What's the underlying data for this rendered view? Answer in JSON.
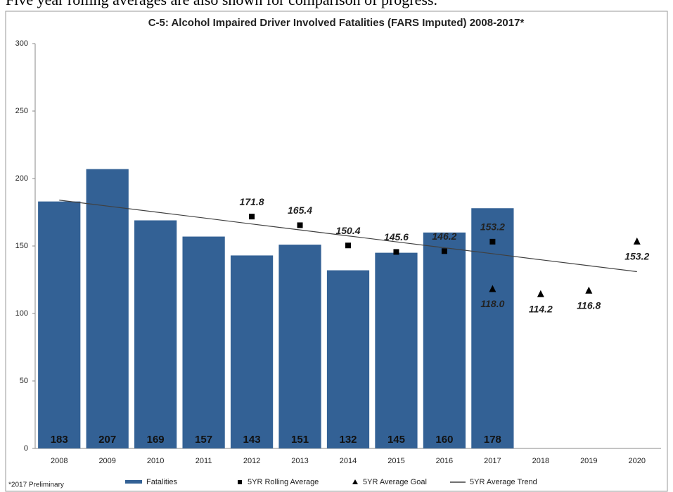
{
  "caption": "Five year rolling averages are also shown for comparison of progress.",
  "chart_data": {
    "type": "bar",
    "title": "C-5: Alcohol Impaired Driver Involved Fatalities (FARS Imputed) 2008-2017*",
    "footnote": "*2017 Preliminary",
    "categories": [
      "2008",
      "2009",
      "2010",
      "2011",
      "2012",
      "2013",
      "2014",
      "2015",
      "2016",
      "2017",
      "2018",
      "2019",
      "2020"
    ],
    "series": [
      {
        "name": "Fatalities",
        "type": "bar",
        "color": "#336195",
        "values": [
          183,
          207,
          169,
          157,
          143,
          151,
          132,
          145,
          160,
          178,
          null,
          null,
          null
        ]
      },
      {
        "name": "5YR Rolling Average",
        "type": "square",
        "color": "#000000",
        "values": [
          null,
          null,
          null,
          null,
          171.8,
          165.4,
          150.4,
          145.6,
          146.2,
          153.2,
          null,
          null,
          null
        ]
      },
      {
        "name": "5YR Average Goal",
        "type": "triangle",
        "color": "#000000",
        "values": [
          null,
          null,
          null,
          null,
          null,
          null,
          null,
          null,
          null,
          118,
          114.2,
          116.8,
          153.2
        ],
        "value_labels": [
          null,
          null,
          null,
          null,
          null,
          null,
          null,
          null,
          null,
          "118.0",
          "114.2",
          "116.8",
          "153.2"
        ]
      },
      {
        "name": "5YR Average Trend",
        "type": "line",
        "color": "#404040",
        "values": [
          184,
          179.6,
          175.2,
          170.8,
          166.3,
          161.9,
          157.5,
          153.1,
          148.7,
          144.3,
          139.8,
          135.4,
          131
        ]
      }
    ],
    "ylim": [
      0,
      300
    ],
    "yticks": [
      0,
      50,
      100,
      150,
      200,
      250,
      300
    ],
    "grid": false,
    "legend": "bottom"
  }
}
